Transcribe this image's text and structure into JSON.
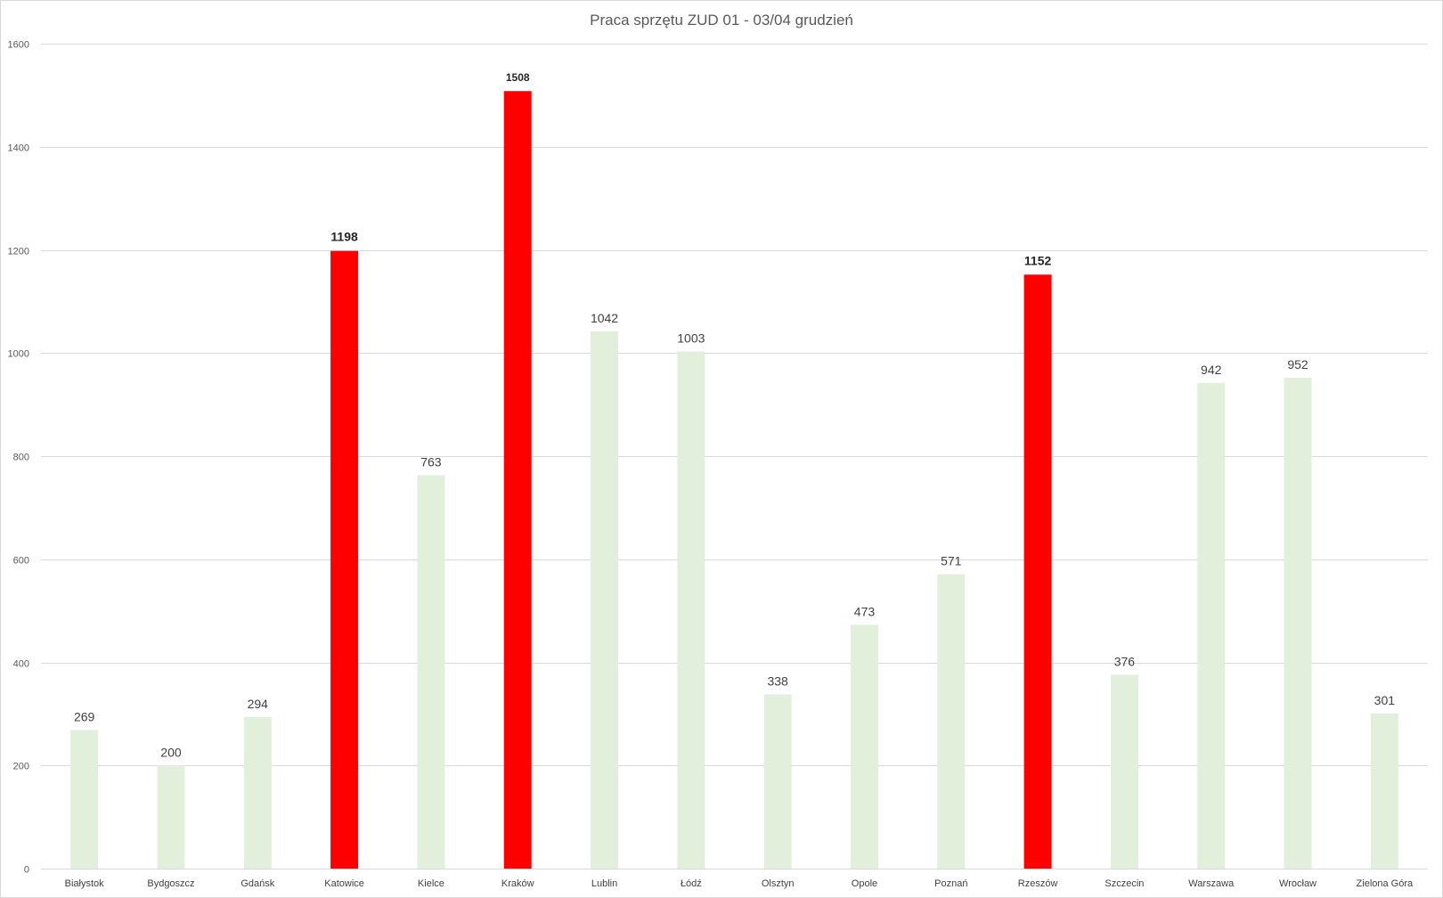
{
  "chart_data": {
    "type": "bar",
    "title": "Praca sprzętu ZUD 01 - 03/04 grudzień",
    "xlabel": "",
    "ylabel": "",
    "categories": [
      "Białystok",
      "Bydgoszcz",
      "Gdańsk",
      "Katowice",
      "Kielce",
      "Kraków",
      "Lublin",
      "Łódź",
      "Olsztyn",
      "Opole",
      "Poznań",
      "Rzeszów",
      "Szczecin",
      "Warszawa",
      "Wrocław",
      "Zielona Góra"
    ],
    "values": [
      269,
      200,
      294,
      1198,
      763,
      1508,
      1042,
      1003,
      338,
      473,
      571,
      1152,
      376,
      942,
      952,
      301
    ],
    "highlighted": [
      false,
      false,
      false,
      true,
      false,
      true,
      false,
      false,
      false,
      false,
      false,
      true,
      false,
      false,
      false,
      false
    ],
    "data_label_text": [
      "269",
      "200",
      "294",
      "1198",
      "763",
      "1508",
      "1042",
      "1003",
      "338",
      "473",
      "571",
      "1152",
      "376",
      "942",
      "952",
      "301"
    ],
    "ylim": [
      0,
      1600
    ],
    "y_ticks": [
      0,
      200,
      400,
      600,
      800,
      1000,
      1200,
      1400,
      1600
    ],
    "y_tick_labels": [
      "0",
      "200",
      "400",
      "600",
      "800",
      "1000",
      "1200",
      "1400",
      "1600"
    ],
    "grid": true,
    "legend": "none",
    "colors": {
      "bar": "#e2efda",
      "bar_highlight": "#ff0000",
      "grid": "#d9d9d9"
    }
  }
}
